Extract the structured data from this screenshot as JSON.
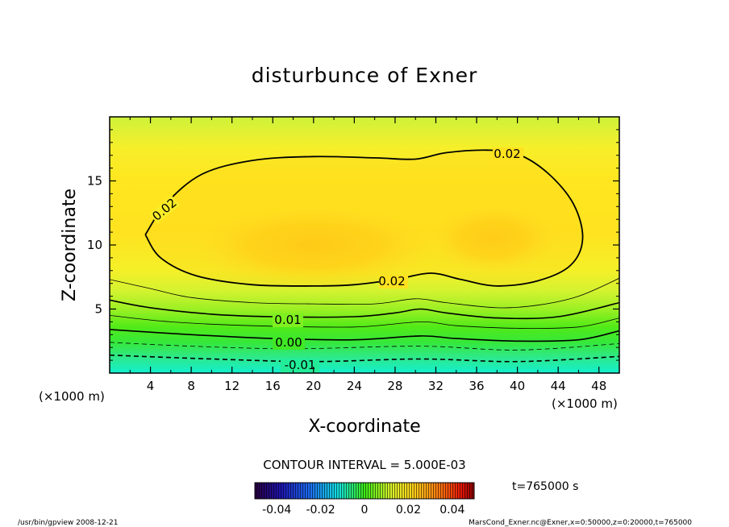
{
  "chart_data": {
    "type": "heatmap",
    "title": "disturbunce of Exner",
    "xlabel": "X-coordinate",
    "ylabel": "Z-coordinate",
    "x_unit_label": "(×1000 m)",
    "xlim": [
      0,
      50
    ],
    "ylim": [
      0,
      20
    ],
    "x_ticks": [
      "4",
      "8",
      "12",
      "16",
      "20",
      "24",
      "28",
      "32",
      "36",
      "40",
      "44",
      "48"
    ],
    "y_ticks": [
      "5",
      "10",
      "15"
    ],
    "contour_labels": [
      "0.02",
      "0.02",
      "0.02",
      "0.01",
      "0.00",
      "-0.01"
    ],
    "contour_interval_text": "CONTOUR INTERVAL = 5.000E-03",
    "time_text": "t=765000 s",
    "colorbar": {
      "range": [
        -0.05,
        0.05
      ],
      "tick_labels": [
        "-0.04",
        "-0.02",
        "0",
        "0.02",
        "0.04"
      ]
    },
    "series": [
      {
        "name": "0.02",
        "points": [
          [
            3.5,
            10.8
          ],
          [
            5.5,
            13.2
          ],
          [
            9,
            15.5
          ],
          [
            14,
            16.6
          ],
          [
            20,
            16.9
          ],
          [
            26,
            16.8
          ],
          [
            30,
            16.7
          ],
          [
            33,
            17.2
          ],
          [
            37,
            17.4
          ],
          [
            40,
            17.1
          ],
          [
            43,
            15.6
          ],
          [
            45.5,
            13.2
          ],
          [
            46.4,
            10.5
          ],
          [
            45.2,
            8.4
          ],
          [
            42,
            7.2
          ],
          [
            38,
            6.8
          ],
          [
            34.5,
            7.3
          ],
          [
            31.5,
            7.8
          ],
          [
            28,
            7.3
          ],
          [
            24,
            6.9
          ],
          [
            20,
            6.8
          ],
          [
            14,
            6.9
          ],
          [
            8.5,
            7.6
          ],
          [
            5,
            9
          ],
          [
            3.5,
            10.8
          ]
        ]
      }
    ],
    "lower_contours": [
      {
        "style": "solid-thin",
        "points": [
          [
            0,
            7.3
          ],
          [
            4,
            6.6
          ],
          [
            8,
            5.9
          ],
          [
            14,
            5.5
          ],
          [
            20,
            5.4
          ],
          [
            26,
            5.4
          ],
          [
            30,
            5.8
          ],
          [
            33,
            5.5
          ],
          [
            38,
            5.1
          ],
          [
            42,
            5.3
          ],
          [
            46,
            6
          ],
          [
            50,
            7.4
          ]
        ]
      },
      {
        "style": "solid",
        "points": [
          [
            0,
            5.7
          ],
          [
            4,
            5.1
          ],
          [
            10,
            4.6
          ],
          [
            16,
            4.4
          ],
          [
            24,
            4.4
          ],
          [
            28,
            4.7
          ],
          [
            30.5,
            5.0
          ],
          [
            33,
            4.7
          ],
          [
            38,
            4.3
          ],
          [
            44,
            4.4
          ],
          [
            50,
            5.5
          ]
        ]
      },
      {
        "style": "solid-thin",
        "points": [
          [
            0,
            4.5
          ],
          [
            6,
            4.0
          ],
          [
            14,
            3.7
          ],
          [
            24,
            3.6
          ],
          [
            30.5,
            4.0
          ],
          [
            34,
            3.7
          ],
          [
            40,
            3.5
          ],
          [
            46,
            3.6
          ],
          [
            50,
            4.3
          ]
        ]
      },
      {
        "style": "solid",
        "points": [
          [
            0,
            3.4
          ],
          [
            8,
            3.0
          ],
          [
            16,
            2.7
          ],
          [
            24,
            2.6
          ],
          [
            30.5,
            2.9
          ],
          [
            34,
            2.7
          ],
          [
            40,
            2.5
          ],
          [
            46,
            2.6
          ],
          [
            50,
            3.3
          ]
        ]
      },
      {
        "style": "dashed-thin",
        "points": [
          [
            0,
            2.4
          ],
          [
            8,
            2.1
          ],
          [
            18,
            1.9
          ],
          [
            30.5,
            2.1
          ],
          [
            40,
            1.8
          ],
          [
            50,
            2.3
          ]
        ]
      },
      {
        "style": "dashed",
        "points": [
          [
            0,
            1.4
          ],
          [
            10,
            1.1
          ],
          [
            20,
            0.9
          ],
          [
            30.5,
            1.1
          ],
          [
            40,
            0.9
          ],
          [
            50,
            1.3
          ]
        ]
      }
    ]
  },
  "footer": {
    "left": "/usr/bin/gpview   2008-12-21",
    "right": "MarsCond_Exner.nc@Exner,x=0:50000,z=0:20000,t=765000"
  },
  "colors": {
    "bottom": "#15ecc8",
    "green": "#3cea16",
    "yellowgreen": "#d8f22a",
    "yellow": "#fff023",
    "gold": "#ffd21a",
    "orange": "#ffbf12"
  }
}
